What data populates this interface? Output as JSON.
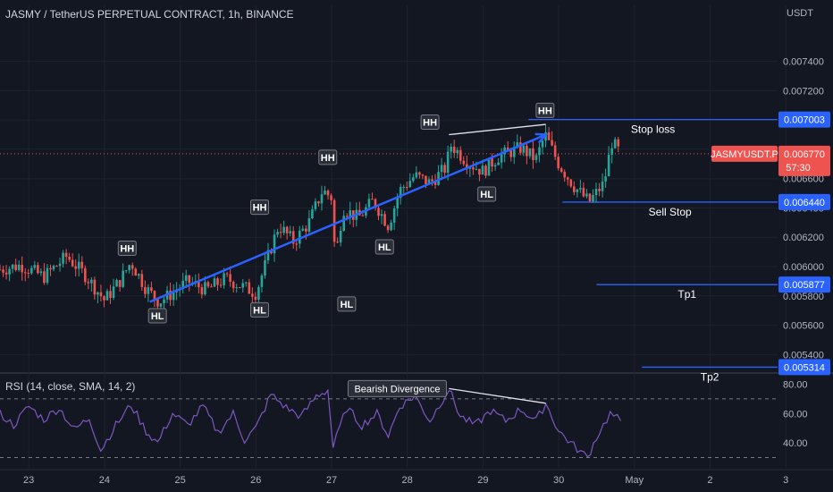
{
  "header": {
    "title": "JASMY / TetherUS PERPETUAL CONTRACT, 1h, BINANCE",
    "currency": "USDT"
  },
  "colors": {
    "background": "#131722",
    "up": "#26a69a",
    "down": "#ef5350",
    "trend": "#2962ff",
    "level_line": "#2962ff",
    "rsi_line": "#7e57c2",
    "grid": "#1e222d",
    "text": "#d1d4dc"
  },
  "chart_data": [
    {
      "type": "candlestick",
      "title": "JASMY / TetherUS PERPETUAL CONTRACT, 1h, BINANCE",
      "y_unit": "USDT",
      "ylim": [
        0.00528,
        0.00766
      ],
      "y_ticks": [
        "0.007400",
        "0.007200",
        "0.007000",
        "0.006800",
        "0.006600",
        "0.006400",
        "0.006200",
        "0.006000",
        "0.005800",
        "0.005600",
        "0.005400"
      ],
      "x_ticks": [
        "23",
        "24",
        "25",
        "26",
        "27",
        "28",
        "29",
        "30",
        "May",
        "2",
        "3"
      ],
      "grid": true,
      "current_price": {
        "label": "JASMYUSDT.P",
        "value": "0.006770",
        "countdown": "57:30",
        "price": 0.00677
      },
      "levels": [
        {
          "label": "Stop loss",
          "value": "0.007003",
          "price": 0.007003,
          "start_day": 29.6
        },
        {
          "label": "Sell Stop",
          "value": "0.006440",
          "price": 0.00644,
          "start_day": 30.05
        },
        {
          "label": "Tp1",
          "value": "0.005877",
          "price": 0.005877,
          "start_day": 30.5
        },
        {
          "label": "Tp2",
          "value": "0.005314",
          "price": 0.005314,
          "start_day": 31.1
        }
      ],
      "trendline": {
        "from": [
          24.6,
          0.00576
        ],
        "to": [
          29.83,
          0.0069
        ]
      },
      "resistance_line": {
        "from": [
          28.55,
          0.0069
        ],
        "to": [
          29.83,
          0.00697
        ]
      },
      "swing_labels": [
        {
          "text": "HH",
          "day": 24.3,
          "price": 0.00604,
          "pos": "above"
        },
        {
          "text": "HL",
          "day": 24.7,
          "price": 0.00575,
          "pos": "below"
        },
        {
          "text": "HH",
          "day": 26.05,
          "price": 0.00632,
          "pos": "above"
        },
        {
          "text": "HL",
          "day": 26.05,
          "price": 0.00579,
          "pos": "below"
        },
        {
          "text": "HH",
          "day": 26.95,
          "price": 0.00666,
          "pos": "above"
        },
        {
          "text": "HL",
          "day": 27.2,
          "price": 0.00583,
          "pos": "below"
        },
        {
          "text": "HL",
          "day": 27.7,
          "price": 0.00622,
          "pos": "below"
        },
        {
          "text": "HH",
          "day": 28.3,
          "price": 0.0069,
          "pos": "above"
        },
        {
          "text": "HL",
          "day": 29.05,
          "price": 0.00658,
          "pos": "below"
        },
        {
          "text": "HH",
          "day": 29.82,
          "price": 0.00698,
          "pos": "above"
        }
      ],
      "price_path": [
        [
          22.62,
          0.00598
        ],
        [
          22.9,
          0.00601
        ],
        [
          23.2,
          0.00593
        ],
        [
          23.5,
          0.00607
        ],
        [
          23.75,
          0.00594
        ],
        [
          24.0,
          0.00577
        ],
        [
          24.2,
          0.0059
        ],
        [
          24.35,
          0.00603
        ],
        [
          24.55,
          0.00585
        ],
        [
          24.72,
          0.00576
        ],
        [
          24.9,
          0.00582
        ],
        [
          25.1,
          0.0059
        ],
        [
          25.35,
          0.00584
        ],
        [
          25.6,
          0.00592
        ],
        [
          25.8,
          0.00587
        ],
        [
          26.0,
          0.00582
        ],
        [
          26.15,
          0.00605
        ],
        [
          26.3,
          0.00628
        ],
        [
          26.5,
          0.00617
        ],
        [
          26.7,
          0.0063
        ],
        [
          26.88,
          0.00652
        ],
        [
          27.0,
          0.00647
        ],
        [
          27.05,
          0.00605
        ],
        [
          27.15,
          0.0064
        ],
        [
          27.35,
          0.00633
        ],
        [
          27.55,
          0.00645
        ],
        [
          27.75,
          0.00628
        ],
        [
          27.9,
          0.00652
        ],
        [
          28.1,
          0.00662
        ],
        [
          28.3,
          0.00657
        ],
        [
          28.5,
          0.00667
        ],
        [
          28.58,
          0.00683
        ],
        [
          28.8,
          0.00671
        ],
        [
          29.0,
          0.00665
        ],
        [
          29.2,
          0.00675
        ],
        [
          29.5,
          0.00681
        ],
        [
          29.7,
          0.00673
        ],
        [
          29.82,
          0.0069
        ],
        [
          30.0,
          0.0067
        ],
        [
          30.2,
          0.00655
        ],
        [
          30.4,
          0.00644
        ],
        [
          30.6,
          0.00657
        ],
        [
          30.7,
          0.00685
        ],
        [
          30.82,
          0.00677
        ]
      ]
    },
    {
      "type": "line",
      "title": "RSI (14, close, SMA, 14, 2)",
      "series_name": "RSI",
      "ylim": [
        23,
        87
      ],
      "y_ticks": [
        "80.00",
        "60.00",
        "40.00"
      ],
      "bands": [
        70,
        30
      ],
      "annotation": {
        "text": "Bearish Divergence",
        "day": 27.1,
        "value": 77
      },
      "divergence_line": {
        "from": [
          28.55,
          77
        ],
        "to": [
          29.83,
          67
        ]
      },
      "values_path": [
        [
          22.62,
          60
        ],
        [
          22.8,
          52
        ],
        [
          23.0,
          65
        ],
        [
          23.2,
          56
        ],
        [
          23.4,
          64
        ],
        [
          23.6,
          49
        ],
        [
          23.8,
          57
        ],
        [
          23.95,
          35
        ],
        [
          24.15,
          52
        ],
        [
          24.35,
          66
        ],
        [
          24.55,
          48
        ],
        [
          24.7,
          40
        ],
        [
          24.9,
          60
        ],
        [
          25.1,
          52
        ],
        [
          25.3,
          65
        ],
        [
          25.5,
          47
        ],
        [
          25.7,
          60
        ],
        [
          25.85,
          42
        ],
        [
          26.0,
          50
        ],
        [
          26.2,
          73
        ],
        [
          26.4,
          64
        ],
        [
          26.6,
          58
        ],
        [
          26.8,
          72
        ],
        [
          26.95,
          76
        ],
        [
          27.02,
          37
        ],
        [
          27.2,
          64
        ],
        [
          27.4,
          52
        ],
        [
          27.6,
          60
        ],
        [
          27.75,
          45
        ],
        [
          27.9,
          65
        ],
        [
          28.1,
          72
        ],
        [
          28.3,
          55
        ],
        [
          28.55,
          77
        ],
        [
          28.7,
          58
        ],
        [
          28.9,
          52
        ],
        [
          29.1,
          62
        ],
        [
          29.3,
          55
        ],
        [
          29.5,
          63
        ],
        [
          29.7,
          55
        ],
        [
          29.83,
          67
        ],
        [
          30.0,
          48
        ],
        [
          30.2,
          38
        ],
        [
          30.38,
          30
        ],
        [
          30.5,
          44
        ],
        [
          30.68,
          60
        ],
        [
          30.82,
          55
        ]
      ]
    }
  ]
}
